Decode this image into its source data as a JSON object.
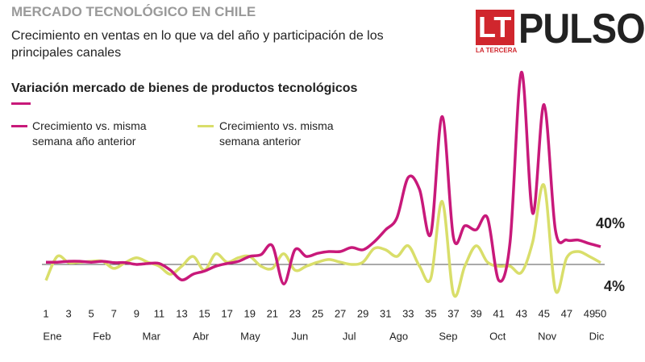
{
  "chart_data": {
    "type": "line",
    "title": "MERCADO TECNOLÓGICO EN CHILE",
    "subtitle": "Crecimiento en ventas en lo que va del año y participación de los principales canales",
    "heading": "Variación mercado de bienes de productos tecnológicos",
    "logo": {
      "letters": "LT",
      "brand": "LA TERCERA",
      "name": "PULSO"
    },
    "x": [
      1,
      2,
      3,
      4,
      5,
      6,
      7,
      8,
      9,
      10,
      11,
      12,
      13,
      14,
      15,
      16,
      17,
      18,
      19,
      20,
      21,
      22,
      23,
      24,
      25,
      26,
      27,
      28,
      29,
      30,
      31,
      32,
      33,
      34,
      35,
      36,
      37,
      38,
      39,
      40,
      41,
      42,
      43,
      44,
      45,
      46,
      47,
      48,
      49,
      50
    ],
    "xlim": [
      1,
      50
    ],
    "xticks": [
      1,
      3,
      5,
      7,
      9,
      11,
      13,
      15,
      17,
      19,
      21,
      23,
      25,
      27,
      29,
      31,
      33,
      35,
      37,
      39,
      41,
      43,
      45,
      47,
      49,
      50
    ],
    "month_labels": [
      "Ene",
      "Feb",
      "Mar",
      "Abr",
      "May",
      "Jun",
      "Jul",
      "Ago",
      "Sep",
      "Oct",
      "Nov",
      "Dic"
    ],
    "ylim": [
      -80,
      445
    ],
    "series": [
      {
        "name": "Crecimiento vs. misma semana año anterior",
        "color": "#c8197a",
        "end_label": "40%",
        "values": [
          5,
          5,
          7,
          7,
          5,
          7,
          4,
          4,
          0,
          2,
          2,
          -13,
          -35,
          -22,
          -15,
          -4,
          2,
          7,
          18,
          22,
          42,
          -44,
          33,
          18,
          25,
          29,
          29,
          38,
          33,
          51,
          78,
          105,
          196,
          169,
          69,
          333,
          60,
          87,
          78,
          105,
          -36,
          51,
          433,
          115,
          360,
          78,
          55,
          55,
          47,
          40
        ]
      },
      {
        "name": "Crecimiento vs. misma semana anterior",
        "color": "#d9de6a",
        "end_label": "4%",
        "values": [
          -36,
          18,
          4,
          5,
          7,
          7,
          -9,
          4,
          15,
          5,
          -4,
          -22,
          -4,
          18,
          -13,
          24,
          5,
          15,
          18,
          -4,
          -9,
          24,
          -13,
          -4,
          5,
          11,
          5,
          0,
          5,
          36,
          33,
          18,
          42,
          -4,
          -31,
          142,
          -67,
          -4,
          42,
          5,
          -4,
          -4,
          -18,
          51,
          178,
          -58,
          15,
          29,
          18,
          4
        ]
      }
    ]
  }
}
